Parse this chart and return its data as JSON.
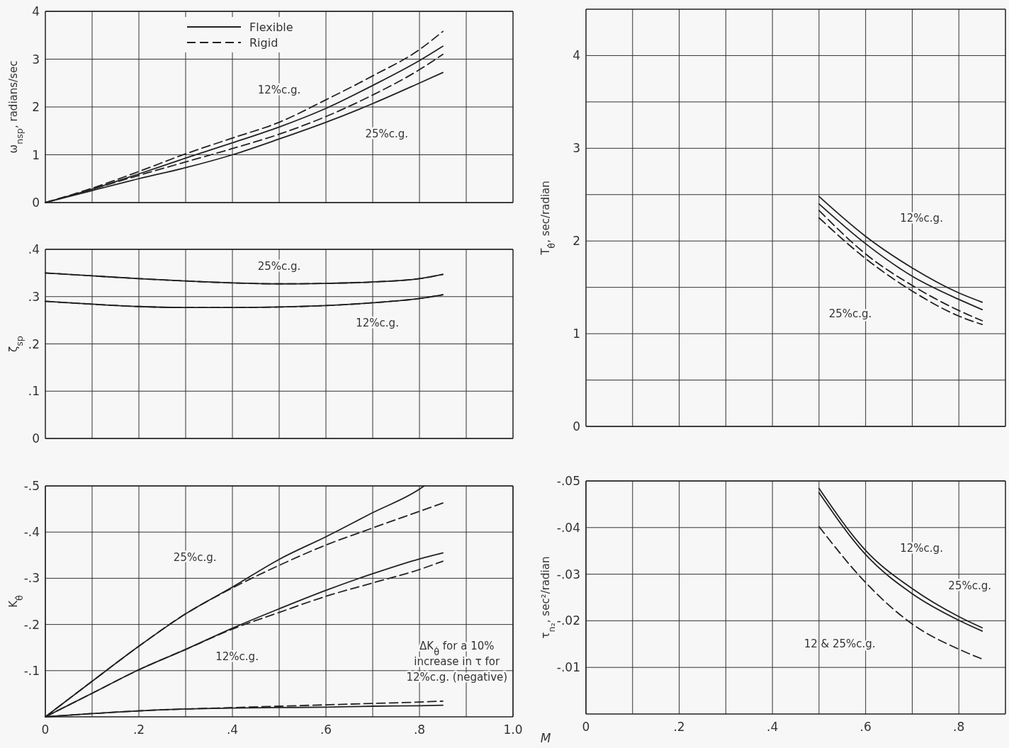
{
  "chart_data": [
    {
      "type": "line",
      "ylabel": "ω$_{nsp}$, radians/sec",
      "xlim": [
        0,
        1.0
      ],
      "ylim": [
        0,
        4
      ],
      "xticks": [
        {
          "value": 0.1,
          "label": null
        },
        {
          "value": 0.2,
          "label": null
        },
        {
          "value": 0.3,
          "label": null
        },
        {
          "value": 0.4,
          "label": null
        },
        {
          "value": 0.5,
          "label": null
        },
        {
          "value": 0.6,
          "label": null
        },
        {
          "value": 0.7,
          "label": null
        },
        {
          "value": 0.8,
          "label": null
        },
        {
          "value": 0.9,
          "label": null
        }
      ],
      "yticks": [
        0,
        1,
        2,
        3,
        4
      ],
      "tick_labels": "y",
      "grid": true,
      "legend": "top",
      "x": [
        0,
        0.1,
        0.2,
        0.3,
        0.4,
        0.5,
        0.6,
        0.7,
        0.8,
        0.85
      ],
      "series": [
        {
          "name": "Flexible",
          "color": "#222222",
          "line_style": "solid",
          "values": [
            0,
            0.28,
            0.6,
            0.93,
            1.25,
            1.58,
            1.97,
            2.45,
            2.97,
            3.27
          ]
        },
        {
          "name": "Rigid",
          "color": "#222222",
          "line_style": "dashed",
          "values": [
            0,
            0.3,
            0.65,
            1.02,
            1.35,
            1.68,
            2.15,
            2.65,
            3.2,
            3.58
          ]
        },
        {
          "color": "#222222",
          "line_style": "solid",
          "values": [
            0,
            0.25,
            0.5,
            0.73,
            1.0,
            1.33,
            1.68,
            2.07,
            2.5,
            2.72
          ]
        },
        {
          "color": "#222222",
          "line_style": "dashed",
          "values": [
            0,
            0.28,
            0.57,
            0.85,
            1.13,
            1.43,
            1.8,
            2.25,
            2.78,
            3.1
          ]
        }
      ],
      "annotations": [
        "12%c.g.",
        "25%c.g."
      ]
    },
    {
      "type": "line",
      "ylabel": "ζ$_{sp}$",
      "xlim": [
        0,
        1.0
      ],
      "ylim": [
        0,
        0.4
      ],
      "xticks": [
        {
          "value": 0.1,
          "label": null
        },
        {
          "value": 0.2,
          "label": null
        },
        {
          "value": 0.3,
          "label": null
        },
        {
          "value": 0.4,
          "label": null
        },
        {
          "value": 0.5,
          "label": null
        },
        {
          "value": 0.6,
          "label": null
        },
        {
          "value": 0.7,
          "label": null
        },
        {
          "value": 0.8,
          "label": null
        },
        {
          "value": 0.9,
          "label": null
        }
      ],
      "yticks": [
        0,
        {
          "value": 0.1,
          "label": ".1"
        },
        {
          "value": 0.2,
          "label": ".2"
        },
        {
          "value": 0.3,
          "label": ".3"
        },
        {
          "value": 0.4,
          "label": ".4"
        }
      ],
      "tick_labels": "y",
      "grid": true,
      "x": [
        0,
        0.1,
        0.2,
        0.3,
        0.4,
        0.5,
        0.6,
        0.7,
        0.8,
        0.85
      ],
      "series": [
        {
          "color": "#222222",
          "line_style": "solid",
          "values": [
            0.35,
            0.344,
            0.338,
            0.333,
            0.329,
            0.327,
            0.328,
            0.331,
            0.338,
            0.347
          ]
        },
        {
          "color": "#222222",
          "line_style": "dashed",
          "values": [
            0.35,
            0.344,
            0.338,
            0.333,
            0.329,
            0.327,
            0.328,
            0.331,
            0.338,
            0.347
          ]
        },
        {
          "color": "#222222",
          "line_style": "solid",
          "values": [
            0.29,
            0.284,
            0.279,
            0.277,
            0.277,
            0.278,
            0.281,
            0.287,
            0.296,
            0.304
          ]
        },
        {
          "color": "#222222",
          "line_style": "dashed",
          "values": [
            0.29,
            0.284,
            0.279,
            0.277,
            0.277,
            0.278,
            0.281,
            0.287,
            0.296,
            0.304
          ]
        }
      ],
      "annotations": [
        "25%c.g.",
        "12%c.g."
      ]
    },
    {
      "type": "line",
      "ylabel": "K$_{θ̇}$",
      "xlabel": "M",
      "xlim": [
        0,
        1.0
      ],
      "ylim": [
        0,
        -0.5
      ],
      "xticks": [
        0,
        {
          "value": 0.1,
          "label": null
        },
        {
          "value": 0.2,
          "label": ".2"
        },
        {
          "value": 0.3,
          "label": null
        },
        {
          "value": 0.4,
          "label": ".4"
        },
        {
          "value": 0.5,
          "label": null
        },
        {
          "value": 0.6,
          "label": ".6"
        },
        {
          "value": 0.7,
          "label": null
        },
        {
          "value": 0.8,
          "label": ".8"
        },
        {
          "value": 0.9,
          "label": null
        },
        {
          "value": 1.0,
          "label": "1.0"
        }
      ],
      "yticks": [
        {
          "value": -0.1,
          "label": "-.1"
        },
        {
          "value": -0.2,
          "label": "-.2"
        },
        {
          "value": -0.3,
          "label": "-.3"
        },
        {
          "value": -0.4,
          "label": "-.4"
        },
        {
          "value": -0.5,
          "label": "-.5"
        }
      ],
      "grid": true,
      "x": [
        0,
        0.1,
        0.2,
        0.3,
        0.4,
        0.5,
        0.6,
        0.7,
        0.8,
        0.85
      ],
      "series": [
        {
          "color": "#222222",
          "line_style": "solid",
          "x": [
            0,
            0.1,
            0.2,
            0.3,
            0.4,
            0.5,
            0.6,
            0.7,
            0.8,
            0.81
          ],
          "values": [
            0,
            -0.077,
            -0.153,
            -0.223,
            -0.281,
            -0.341,
            -0.39,
            -0.442,
            -0.493,
            -0.5
          ]
        },
        {
          "color": "#222222",
          "line_style": "dashed",
          "values": [
            0,
            -0.077,
            -0.153,
            -0.223,
            -0.279,
            -0.328,
            -0.372,
            -0.409,
            -0.445,
            -0.463
          ]
        },
        {
          "color": "#222222",
          "line_style": "solid",
          "values": [
            0,
            -0.051,
            -0.102,
            -0.146,
            -0.192,
            -0.234,
            -0.274,
            -0.31,
            -0.342,
            -0.355
          ]
        },
        {
          "color": "#222222",
          "line_style": "dashed",
          "values": [
            0,
            -0.051,
            -0.102,
            -0.146,
            -0.19,
            -0.226,
            -0.261,
            -0.29,
            -0.319,
            -0.337
          ]
        },
        {
          "color": "#222222",
          "line_style": "solid",
          "values": [
            0,
            -0.007,
            -0.013,
            -0.017,
            -0.019,
            -0.02,
            -0.021,
            -0.023,
            -0.024,
            -0.025
          ]
        },
        {
          "color": "#222222",
          "line_style": "dashed",
          "values": [
            0,
            -0.007,
            -0.013,
            -0.017,
            -0.02,
            -0.023,
            -0.026,
            -0.029,
            -0.032,
            -0.034
          ]
        }
      ],
      "annotations": [
        "25%c.g.",
        "12%c.g.",
        "ΔK$_{θ̇}$ for a 10%\nincrease in τ for\n12%c.g. (negative)"
      ]
    },
    {
      "type": "line",
      "ylabel": "T$_{θ̇}$, sec/radian",
      "xlim": [
        0,
        0.9
      ],
      "ylim": [
        0,
        4.5
      ],
      "xticks": [
        {
          "value": 0.1,
          "label": null
        },
        {
          "value": 0.2,
          "label": null
        },
        {
          "value": 0.3,
          "label": null
        },
        {
          "value": 0.4,
          "label": null
        },
        {
          "value": 0.5,
          "label": null
        },
        {
          "value": 0.6,
          "label": null
        },
        {
          "value": 0.7,
          "label": null
        },
        {
          "value": 0.8,
          "label": null
        }
      ],
      "yticks": [
        0,
        {
          "value": 0.5,
          "label": null
        },
        1,
        {
          "value": 1.5,
          "label": null
        },
        2,
        {
          "value": 2.5,
          "label": null
        },
        3,
        {
          "value": 3.5,
          "label": null
        },
        4
      ],
      "tick_labels": "y",
      "grid": true,
      "x": [
        0.5,
        0.6,
        0.7,
        0.8,
        0.85
      ],
      "series": [
        {
          "color": "#222222",
          "line_style": "solid",
          "values": [
            2.48,
            2.05,
            1.71,
            1.44,
            1.34
          ]
        },
        {
          "color": "#222222",
          "line_style": "solid",
          "values": [
            2.4,
            1.97,
            1.62,
            1.37,
            1.26
          ]
        },
        {
          "color": "#222222",
          "line_style": "dashed",
          "values": [
            2.33,
            1.86,
            1.52,
            1.25,
            1.14
          ]
        },
        {
          "color": "#222222",
          "line_style": "dashed",
          "values": [
            2.25,
            1.81,
            1.46,
            1.19,
            1.1
          ]
        }
      ],
      "annotations": [
        "12%c.g.",
        "25%c.g."
      ]
    },
    {
      "type": "line",
      "ylabel": "τ$_{n₂}$, sec²/radian",
      "xlim": [
        0,
        0.9
      ],
      "ylim": [
        0,
        -0.05
      ],
      "xticks": [
        0,
        {
          "value": 0.1,
          "label": null
        },
        {
          "value": 0.2,
          "label": ".2"
        },
        {
          "value": 0.3,
          "label": null
        },
        {
          "value": 0.4,
          "label": ".4"
        },
        {
          "value": 0.5,
          "label": null
        },
        {
          "value": 0.6,
          "label": ".6"
        },
        {
          "value": 0.7,
          "label": null
        },
        {
          "value": 0.8,
          "label": ".8"
        }
      ],
      "yticks": [
        {
          "value": -0.01,
          "label": "-.01"
        },
        {
          "value": -0.02,
          "label": "-.02"
        },
        {
          "value": -0.03,
          "label": "-.03"
        },
        {
          "value": -0.04,
          "label": "-.04"
        },
        {
          "value": -0.05,
          "label": "-.05"
        }
      ],
      "grid": true,
      "x": [
        0.5,
        0.6,
        0.7,
        0.8,
        0.85
      ],
      "series": [
        {
          "color": "#222222",
          "line_style": "solid",
          "values": [
            -0.0484,
            -0.0351,
            -0.0269,
            -0.0209,
            -0.0185
          ]
        },
        {
          "color": "#222222",
          "line_style": "solid",
          "values": [
            -0.0475,
            -0.0342,
            -0.0258,
            -0.0201,
            -0.0178
          ]
        },
        {
          "color": "#222222",
          "line_style": "dashed",
          "values": [
            -0.0402,
            -0.0282,
            -0.0193,
            -0.0139,
            -0.0118
          ]
        }
      ],
      "annotations": [
        "12%c.g.",
        "25%c.g.",
        "12 & 25%c.g."
      ]
    }
  ]
}
